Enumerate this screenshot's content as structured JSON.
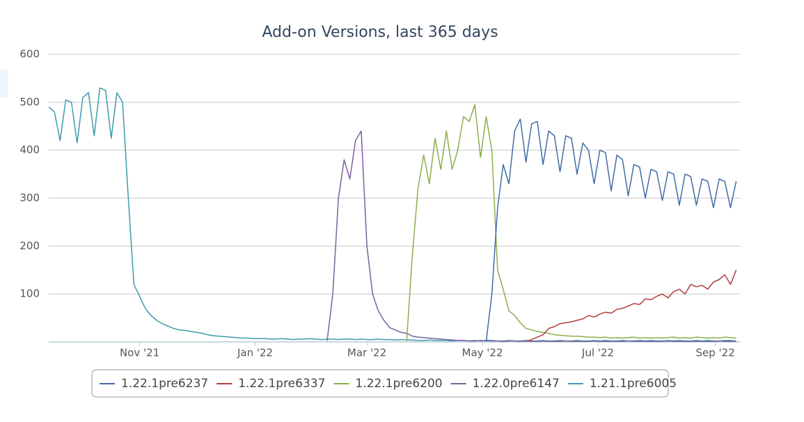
{
  "chart_data": {
    "type": "line",
    "title": "Add-on Versions, last 365 days",
    "x": [
      0,
      3,
      6,
      9,
      12,
      15,
      18,
      21,
      24,
      27,
      30,
      33,
      36,
      39,
      42,
      45,
      48,
      51,
      54,
      57,
      60,
      63,
      66,
      69,
      72,
      75,
      78,
      81,
      84,
      87,
      90,
      93,
      96,
      99,
      102,
      105,
      108,
      111,
      114,
      117,
      120,
      123,
      126,
      129,
      132,
      135,
      138,
      141,
      144,
      147,
      150,
      153,
      156,
      159,
      162,
      165,
      168,
      171,
      174,
      177,
      180,
      183,
      186,
      189,
      192,
      195,
      198,
      201,
      204,
      207,
      210,
      213,
      216,
      219,
      222,
      225,
      228,
      231,
      234,
      237,
      240,
      243,
      246,
      249,
      252,
      255,
      258,
      261,
      264,
      267,
      270,
      273,
      276,
      279,
      282,
      285,
      288,
      291,
      294,
      297,
      300,
      303,
      306,
      309,
      312,
      315,
      318,
      321,
      324,
      327,
      330,
      333,
      336,
      339,
      342,
      345,
      348,
      351,
      354,
      357,
      360,
      363
    ],
    "xlim": [
      0,
      365
    ],
    "xticks": [
      {
        "value": 48,
        "label": "Nov '21"
      },
      {
        "value": 109,
        "label": "Jan '22"
      },
      {
        "value": 168,
        "label": "Mar '22"
      },
      {
        "value": 229,
        "label": "May '22"
      },
      {
        "value": 290,
        "label": "Jul '22"
      },
      {
        "value": 352,
        "label": "Sep '22"
      }
    ],
    "ylim": [
      0,
      600
    ],
    "yticks": [
      100,
      200,
      300,
      400,
      500,
      600
    ],
    "grid": true,
    "legend": "bottom",
    "series": [
      {
        "name": "1.22.1pre6237",
        "color": "#3f6aa5",
        "values": [
          null,
          null,
          null,
          null,
          null,
          null,
          null,
          null,
          null,
          null,
          null,
          null,
          null,
          null,
          null,
          null,
          null,
          null,
          null,
          null,
          null,
          null,
          null,
          null,
          null,
          null,
          null,
          null,
          null,
          null,
          null,
          null,
          null,
          null,
          null,
          null,
          null,
          null,
          null,
          null,
          null,
          null,
          null,
          null,
          null,
          null,
          null,
          null,
          null,
          null,
          null,
          null,
          null,
          null,
          null,
          null,
          null,
          null,
          null,
          null,
          null,
          null,
          null,
          null,
          null,
          null,
          null,
          null,
          null,
          null,
          null,
          null,
          null,
          null,
          null,
          null,
          null,
          1,
          100,
          280,
          370,
          330,
          440,
          465,
          375,
          455,
          460,
          370,
          440,
          430,
          355,
          430,
          425,
          350,
          415,
          400,
          330,
          400,
          395,
          315,
          390,
          380,
          305,
          370,
          365,
          300,
          360,
          355,
          295,
          355,
          350,
          285,
          350,
          345,
          285,
          340,
          335,
          280,
          340,
          335,
          280,
          335
        ]
      },
      {
        "name": "1.22.1pre6337",
        "color": "#b23b3b",
        "values": [
          null,
          null,
          null,
          null,
          null,
          null,
          null,
          null,
          null,
          null,
          null,
          null,
          null,
          null,
          null,
          null,
          null,
          null,
          null,
          null,
          null,
          null,
          null,
          null,
          null,
          null,
          null,
          null,
          null,
          null,
          null,
          null,
          null,
          null,
          null,
          null,
          null,
          null,
          null,
          null,
          null,
          null,
          null,
          null,
          null,
          null,
          null,
          null,
          null,
          null,
          null,
          null,
          null,
          null,
          null,
          null,
          null,
          null,
          null,
          null,
          null,
          null,
          null,
          null,
          null,
          null,
          null,
          null,
          null,
          null,
          null,
          null,
          null,
          null,
          null,
          null,
          null,
          null,
          null,
          null,
          null,
          null,
          null,
          null,
          1,
          5,
          10,
          15,
          28,
          32,
          38,
          40,
          42,
          45,
          48,
          55,
          52,
          58,
          62,
          60,
          68,
          70,
          75,
          80,
          78,
          90,
          88,
          95,
          100,
          92,
          105,
          110,
          100,
          120,
          115,
          118,
          110,
          125,
          130,
          140,
          120,
          150
        ]
      },
      {
        "name": "1.22.1pre6200",
        "color": "#87ae4b",
        "values": [
          null,
          null,
          null,
          null,
          null,
          null,
          null,
          null,
          null,
          null,
          null,
          null,
          null,
          null,
          null,
          null,
          null,
          null,
          null,
          null,
          null,
          null,
          null,
          null,
          null,
          null,
          null,
          null,
          null,
          null,
          null,
          null,
          null,
          null,
          null,
          null,
          null,
          null,
          null,
          null,
          null,
          null,
          null,
          null,
          null,
          null,
          null,
          null,
          null,
          null,
          null,
          null,
          null,
          null,
          null,
          null,
          null,
          null,
          null,
          null,
          null,
          null,
          null,
          2,
          180,
          320,
          390,
          330,
          425,
          360,
          440,
          360,
          400,
          470,
          460,
          495,
          385,
          470,
          400,
          150,
          110,
          65,
          55,
          40,
          28,
          25,
          22,
          20,
          18,
          15,
          14,
          13,
          12,
          12,
          11,
          10,
          10,
          9,
          10,
          8,
          9,
          8,
          9,
          10,
          8,
          9,
          8,
          9,
          8,
          9,
          10,
          8,
          9,
          8,
          10,
          9,
          8,
          9,
          8,
          10,
          9,
          8
        ]
      },
      {
        "name": "1.22.0pre6147",
        "color": "#7c60a0",
        "values": [
          null,
          null,
          null,
          null,
          null,
          null,
          null,
          null,
          null,
          null,
          null,
          null,
          null,
          null,
          null,
          null,
          null,
          null,
          null,
          null,
          null,
          null,
          null,
          null,
          null,
          null,
          null,
          null,
          null,
          null,
          null,
          null,
          null,
          null,
          null,
          null,
          null,
          null,
          null,
          null,
          null,
          null,
          null,
          null,
          null,
          null,
          null,
          null,
          null,
          2,
          100,
          300,
          380,
          340,
          420,
          440,
          200,
          100,
          65,
          45,
          30,
          25,
          20,
          18,
          12,
          10,
          9,
          8,
          7,
          6,
          5,
          4,
          3,
          3,
          2,
          2,
          3,
          2,
          2,
          2,
          1,
          2,
          2,
          1,
          2,
          1,
          1,
          2,
          1,
          1,
          1,
          2,
          1,
          1,
          1,
          1,
          2,
          1,
          1,
          1,
          1,
          1,
          2,
          1,
          1,
          1,
          1,
          1,
          1,
          2,
          1,
          1,
          1,
          1,
          1,
          1,
          1,
          1,
          2,
          1,
          1,
          1
        ]
      },
      {
        "name": "1.21.1pre6005",
        "color": "#3d9aae",
        "values": [
          490,
          480,
          420,
          505,
          500,
          415,
          510,
          520,
          430,
          530,
          525,
          425,
          520,
          500,
          300,
          120,
          95,
          70,
          55,
          45,
          38,
          33,
          28,
          25,
          24,
          22,
          20,
          18,
          15,
          13,
          12,
          11,
          10,
          9,
          8,
          8,
          7,
          7,
          7,
          6,
          6,
          7,
          6,
          5,
          6,
          6,
          7,
          6,
          5,
          6,
          6,
          5,
          6,
          6,
          5,
          6,
          5,
          5,
          6,
          5,
          5,
          4,
          5,
          4,
          4,
          3,
          3,
          4,
          3,
          3,
          3,
          2,
          3,
          3,
          2,
          3,
          2,
          3,
          3,
          2,
          2,
          3,
          2,
          2,
          3,
          2,
          2,
          3,
          2,
          2,
          3,
          2,
          2,
          3,
          2,
          2,
          3,
          2,
          3,
          2,
          2,
          3,
          2,
          2,
          3,
          2,
          3,
          2,
          2,
          3,
          2,
          3,
          2,
          2,
          3,
          2,
          3,
          2,
          2,
          3,
          3,
          2
        ]
      }
    ]
  }
}
